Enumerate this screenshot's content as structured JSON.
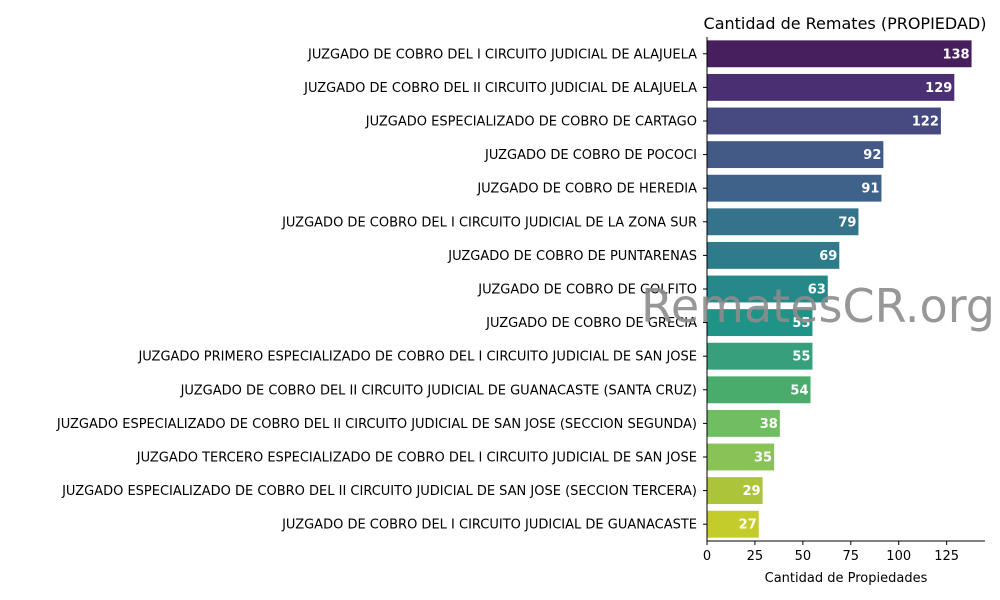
{
  "chart_data": {
    "type": "bar",
    "orientation": "horizontal",
    "title": "Cantidad de Remates (PROPIEDAD)",
    "xlabel": "Cantidad de Propiedades",
    "ylabel": "",
    "xlim": [
      0,
      145
    ],
    "xticks": [
      0,
      25,
      50,
      75,
      100,
      125
    ],
    "grid": false,
    "watermark": "RematesCR.org",
    "categories": [
      "JUZGADO DE COBRO DEL I CIRCUITO JUDICIAL DE ALAJUELA",
      "JUZGADO DE COBRO DEL II CIRCUITO JUDICIAL DE ALAJUELA",
      "JUZGADO ESPECIALIZADO DE COBRO DE CARTAGO",
      "JUZGADO DE COBRO DE POCOCI",
      "JUZGADO DE COBRO DE HEREDIA",
      "JUZGADO DE COBRO DEL I CIRCUITO JUDICIAL DE LA ZONA SUR",
      "JUZGADO DE COBRO DE PUNTARENAS",
      "JUZGADO DE COBRO DE GOLFITO",
      "JUZGADO DE COBRO DE GRECIA",
      "JUZGADO PRIMERO ESPECIALIZADO DE COBRO DEL I CIRCUITO JUDICIAL DE SAN JOSE",
      "JUZGADO DE COBRO DEL II CIRCUITO JUDICIAL DE GUANACASTE (SANTA CRUZ)",
      "JUZGADO ESPECIALIZADO DE COBRO DEL II CIRCUITO JUDICIAL DE SAN JOSE (SECCION SEGUNDA)",
      "JUZGADO TERCERO ESPECIALIZADO DE COBRO DEL I CIRCUITO JUDICIAL DE SAN JOSE",
      "JUZGADO ESPECIALIZADO DE COBRO DEL II CIRCUITO JUDICIAL DE SAN JOSE (SECCION TERCERA)",
      "JUZGADO DE COBRO DEL I CIRCUITO JUDICIAL DE GUANACASTE"
    ],
    "values": [
      138,
      129,
      122,
      92,
      91,
      79,
      69,
      63,
      55,
      55,
      54,
      38,
      35,
      29,
      27
    ],
    "colors": [
      "#471e5e",
      "#4a2f73",
      "#474a80",
      "#435a87",
      "#3e6289",
      "#35738b",
      "#2e7b8b",
      "#25898a",
      "#1f9386",
      "#369f7c",
      "#4aac6c",
      "#70bd62",
      "#89c256",
      "#acc439",
      "#c4cc2b"
    ]
  }
}
